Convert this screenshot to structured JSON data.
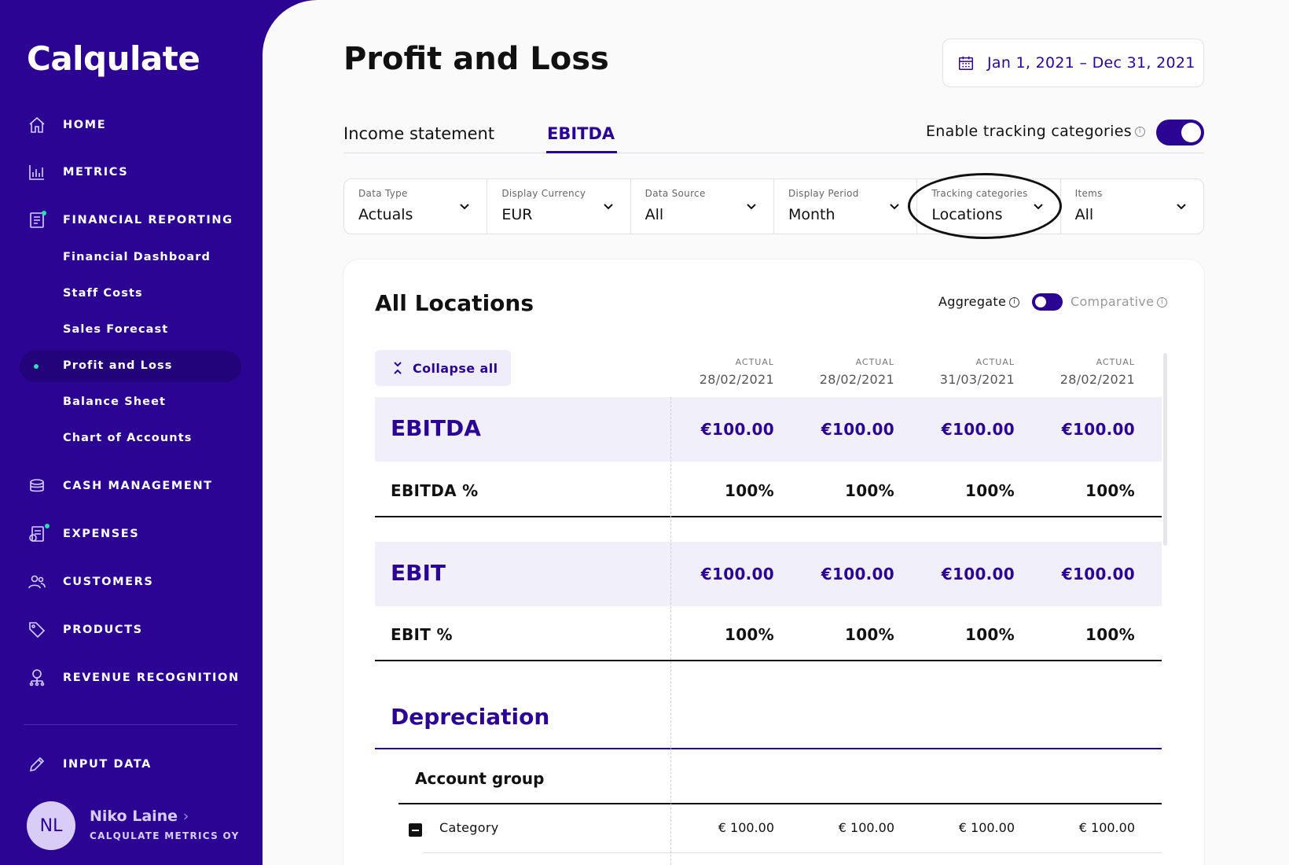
{
  "app": {
    "logo": "Calqulate"
  },
  "sidebar": {
    "items": [
      {
        "label": "HOME",
        "icon": "home-icon"
      },
      {
        "label": "METRICS",
        "icon": "bar-chart-icon"
      },
      {
        "label": "FINANCIAL REPORTING",
        "icon": "report-icon"
      },
      {
        "label": "CASH MANAGEMENT",
        "icon": "coins-icon"
      },
      {
        "label": "EXPENSES",
        "icon": "receipt-icon"
      },
      {
        "label": "CUSTOMERS",
        "icon": "users-icon"
      },
      {
        "label": "PRODUCTS",
        "icon": "tag-icon"
      },
      {
        "label": "REVENUE RECOGNITION",
        "icon": "revenue-icon"
      },
      {
        "label": "INPUT DATA",
        "icon": "pencil-icon"
      }
    ],
    "sub_items": [
      {
        "label": "Financial Dashboard"
      },
      {
        "label": "Staff Costs"
      },
      {
        "label": "Sales Forecast"
      },
      {
        "label": "Profit and Loss"
      },
      {
        "label": "Balance Sheet"
      },
      {
        "label": "Chart of Accounts"
      }
    ],
    "user": {
      "initials": "NL",
      "name": "Niko Laine",
      "chevron": "›",
      "org": "CALQULATE METRICS OY"
    },
    "accent_color": "#2b0493",
    "badge_color": "#2de0b0"
  },
  "header": {
    "title": "Profit and Loss",
    "date_range": "Jan 1, 2021 – Dec 31, 2021"
  },
  "tabs": [
    {
      "label": "Income statement",
      "active": false
    },
    {
      "label": "EBITDA",
      "active": true
    }
  ],
  "tracking": {
    "label": "Enable tracking categories",
    "info": "i",
    "enabled": true
  },
  "filters": [
    {
      "label": "Data Type",
      "value": "Actuals"
    },
    {
      "label": "Display Currency",
      "value": "EUR"
    },
    {
      "label": "Data Source",
      "value": "All"
    },
    {
      "label": "Display Period",
      "value": "Month"
    },
    {
      "label": "Tracking categories",
      "value": "Locations"
    },
    {
      "label": "Items",
      "value": "All"
    }
  ],
  "card": {
    "title": "All Locations",
    "aggregate_label": "Aggregate",
    "comparative_label": "Comparative",
    "collapse_label": "Collapse all",
    "columns": [
      {
        "type": "ACTUAL",
        "date": "28/02/2021"
      },
      {
        "type": "ACTUAL",
        "date": "28/02/2021"
      },
      {
        "type": "ACTUAL",
        "date": "31/03/2021"
      },
      {
        "type": "ACTUAL",
        "date": "28/02/2021"
      }
    ],
    "ebitda": {
      "label": "EBITDA",
      "values": [
        "€100.00",
        "€100.00",
        "€100.00",
        "€100.00"
      ]
    },
    "ebitda_pct": {
      "label": "EBITDA %",
      "values": [
        "100%",
        "100%",
        "100%",
        "100%"
      ]
    },
    "ebit": {
      "label": "EBIT",
      "values": [
        "€100.00",
        "€100.00",
        "€100.00",
        "€100.00"
      ]
    },
    "ebit_pct": {
      "label": "EBIT %",
      "values": [
        "100%",
        "100%",
        "100%",
        "100%"
      ]
    },
    "depreciation": {
      "label": "Depreciation"
    },
    "account_group": {
      "label": "Account group"
    },
    "category": {
      "label": "Category",
      "values": [
        "€ 100.00",
        "€ 100.00",
        "€ 100.00",
        "€ 100.00"
      ]
    }
  }
}
